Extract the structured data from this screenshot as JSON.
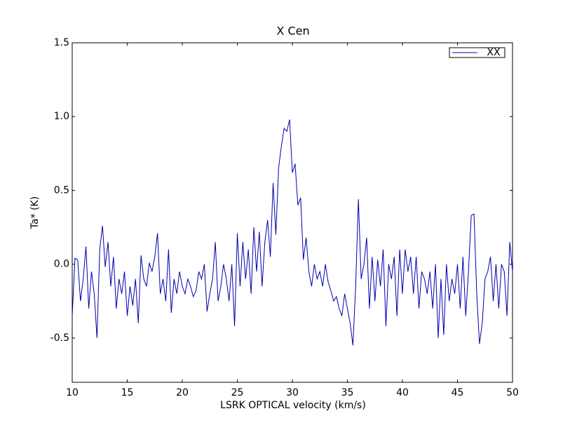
{
  "chart_data": {
    "type": "line",
    "title": "X Cen",
    "xlabel": "LSRK OPTICAL velocity (km/s)",
    "ylabel": "Ta* (K)",
    "x": [
      10,
      10.25,
      10.5,
      10.75,
      11,
      11.25,
      11.5,
      11.75,
      12,
      12.25,
      12.5,
      12.75,
      13,
      13.25,
      13.5,
      13.75,
      14,
      14.25,
      14.5,
      14.75,
      15,
      15.25,
      15.5,
      15.75,
      16,
      16.25,
      16.5,
      16.75,
      17,
      17.25,
      17.5,
      17.75,
      18,
      18.25,
      18.5,
      18.75,
      19,
      19.25,
      19.5,
      19.75,
      20,
      20.25,
      20.5,
      20.75,
      21,
      21.25,
      21.5,
      21.75,
      22,
      22.25,
      22.5,
      22.75,
      23,
      23.25,
      23.5,
      23.75,
      24,
      24.25,
      24.5,
      24.75,
      25,
      25.25,
      25.5,
      25.75,
      26,
      26.25,
      26.5,
      26.75,
      27,
      27.25,
      27.5,
      27.75,
      28,
      28.25,
      28.5,
      28.75,
      29,
      29.25,
      29.5,
      29.75,
      30,
      30.25,
      30.5,
      30.75,
      31,
      31.25,
      31.5,
      31.75,
      32,
      32.25,
      32.5,
      32.75,
      33,
      33.25,
      33.5,
      33.75,
      34,
      34.25,
      34.5,
      34.75,
      35,
      35.25,
      35.5,
      35.75,
      36,
      36.25,
      36.5,
      36.75,
      37,
      37.25,
      37.5,
      37.75,
      38,
      38.25,
      38.5,
      38.75,
      39,
      39.25,
      39.5,
      39.75,
      40,
      40.25,
      40.5,
      40.75,
      41,
      41.25,
      41.5,
      41.75,
      42,
      42.25,
      42.5,
      42.75,
      43,
      43.25,
      43.5,
      43.75,
      44,
      44.25,
      44.5,
      44.75,
      45,
      45.25,
      45.5,
      45.75,
      46,
      46.25,
      46.5,
      46.75,
      47,
      47.25,
      47.5,
      47.75,
      48,
      48.25,
      48.5,
      48.75,
      49,
      49.25,
      49.5,
      49.75,
      50
    ],
    "series": [
      {
        "name": "XX",
        "color": "#0000b0",
        "values": [
          -0.35,
          0.04,
          0.03,
          -0.25,
          -0.1,
          0.12,
          -0.3,
          -0.05,
          -0.2,
          -0.5,
          0.1,
          0.26,
          -0.02,
          0.15,
          -0.15,
          0.05,
          -0.3,
          -0.1,
          -0.2,
          -0.05,
          -0.35,
          -0.15,
          -0.28,
          -0.1,
          -0.4,
          0.06,
          -0.1,
          -0.15,
          0.01,
          -0.05,
          0.05,
          0.21,
          -0.2,
          -0.1,
          -0.25,
          0.1,
          -0.33,
          -0.1,
          -0.2,
          -0.05,
          -0.15,
          -0.2,
          -0.1,
          -0.15,
          -0.22,
          -0.18,
          -0.05,
          -0.1,
          0.0,
          -0.32,
          -0.2,
          -0.1,
          0.15,
          -0.25,
          -0.15,
          0.0,
          -0.1,
          -0.25,
          0.0,
          -0.42,
          0.21,
          -0.15,
          0.15,
          -0.1,
          0.1,
          -0.2,
          0.25,
          -0.05,
          0.22,
          -0.15,
          0.15,
          0.3,
          0.05,
          0.55,
          0.2,
          0.65,
          0.8,
          0.92,
          0.9,
          0.98,
          0.62,
          0.68,
          0.4,
          0.45,
          0.03,
          0.18,
          -0.05,
          -0.15,
          0.0,
          -0.1,
          -0.05,
          -0.15,
          0.0,
          -0.12,
          -0.18,
          -0.25,
          -0.22,
          -0.3,
          -0.35,
          -0.2,
          -0.3,
          -0.4,
          -0.55,
          -0.15,
          0.44,
          -0.1,
          0.0,
          0.18,
          -0.3,
          0.05,
          -0.25,
          0.03,
          -0.15,
          0.1,
          -0.42,
          0.0,
          -0.1,
          0.05,
          -0.35,
          0.1,
          -0.2,
          0.1,
          -0.05,
          0.05,
          -0.2,
          0.05,
          -0.3,
          -0.05,
          -0.1,
          -0.2,
          -0.05,
          -0.3,
          0.0,
          -0.5,
          -0.1,
          -0.48,
          0.0,
          -0.25,
          -0.1,
          -0.2,
          0.0,
          -0.3,
          0.05,
          -0.35,
          -0.05,
          0.33,
          0.34,
          -0.2,
          -0.54,
          -0.4,
          -0.1,
          -0.05,
          0.05,
          -0.25,
          0.0,
          -0.3,
          0.0,
          -0.05,
          -0.35,
          0.15,
          -0.05
        ]
      }
    ],
    "xlim": [
      10,
      50
    ],
    "xticks": [
      10,
      15,
      20,
      25,
      30,
      35,
      40,
      45,
      50
    ],
    "ylim": [
      -0.8,
      1.5
    ],
    "yticks": [
      {
        "value": -0.5,
        "label": "-0.5"
      },
      {
        "value": 0,
        "label": "0.0"
      },
      0.5,
      {
        "value": 1,
        "label": "1.0"
      },
      1.5
    ],
    "legend": "upper right",
    "grid": false
  }
}
